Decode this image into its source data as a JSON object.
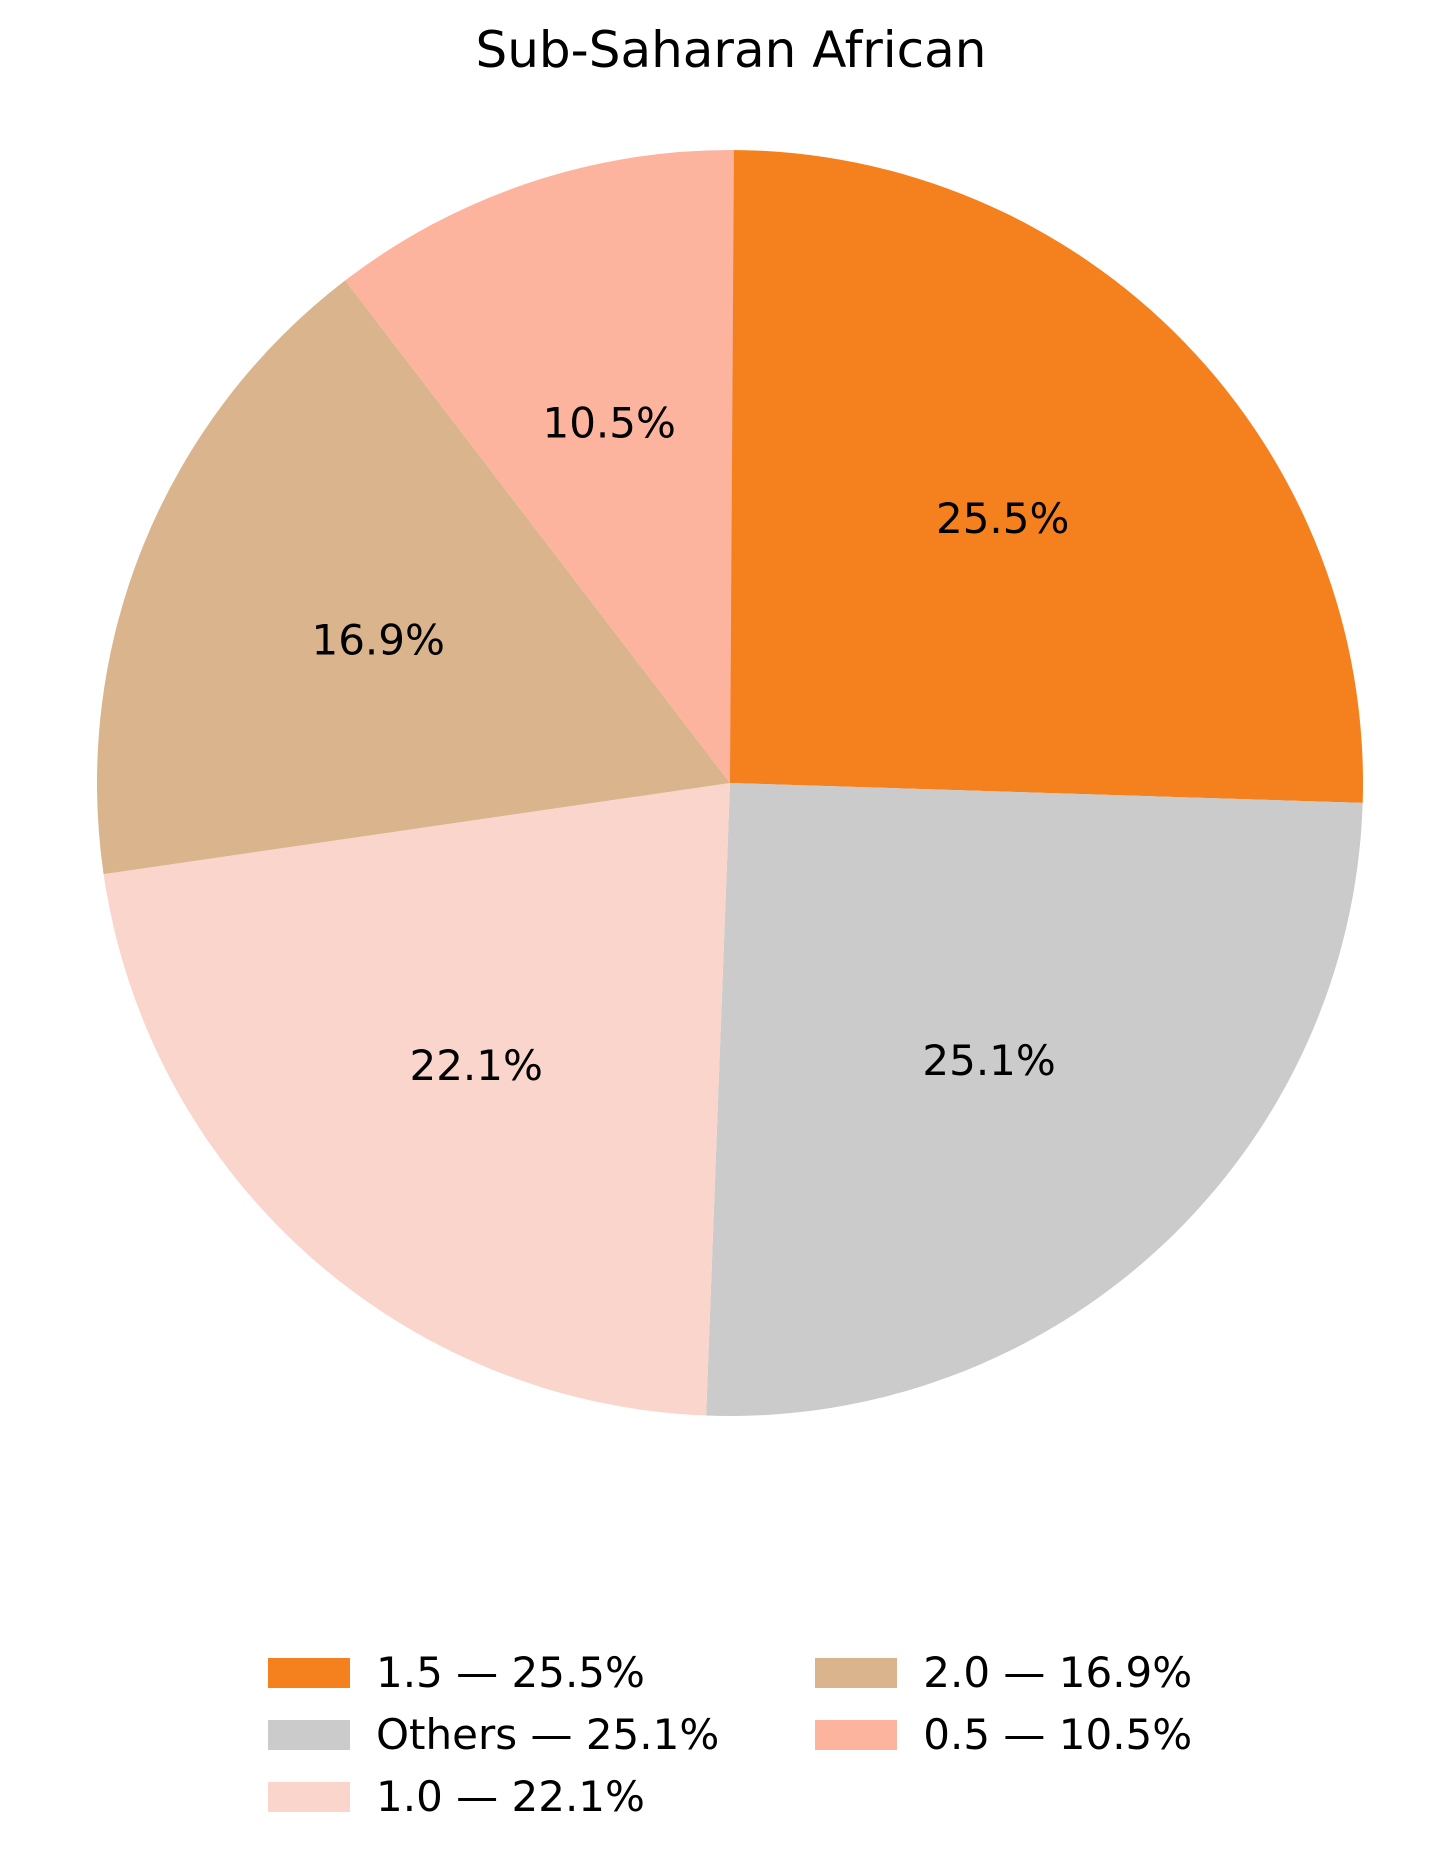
{
  "title": "Sub-Saharan African",
  "colors": {
    "background": "#ffffff",
    "text": "#000000"
  },
  "chart_data": {
    "type": "pie",
    "title": "Sub-Saharan African",
    "start_angle": 90,
    "direction": "clockwise",
    "label_distance": 0.6,
    "legend_position": "bottom",
    "legend_columns": 2,
    "slices": [
      {
        "label": "1.5",
        "value": 25.5,
        "pct_label": "25.5%",
        "color": "#F4811E",
        "legend_label": "1.5 — 25.5%"
      },
      {
        "label": "Others",
        "value": 25.1,
        "pct_label": "25.1%",
        "color": "#CBCBCB",
        "legend_label": "Others — 25.1%"
      },
      {
        "label": "1.0",
        "value": 22.1,
        "pct_label": "22.1%",
        "color": "#FAD5CB",
        "legend_label": "1.0 — 22.1%"
      },
      {
        "label": "2.0",
        "value": 16.9,
        "pct_label": "16.9%",
        "color": "#D9B48C",
        "legend_label": "2.0 — 16.9%"
      },
      {
        "label": "0.5",
        "value": 10.5,
        "pct_label": "10.5%",
        "color": "#FCB49E",
        "legend_label": "0.5 — 10.5%"
      }
    ]
  }
}
